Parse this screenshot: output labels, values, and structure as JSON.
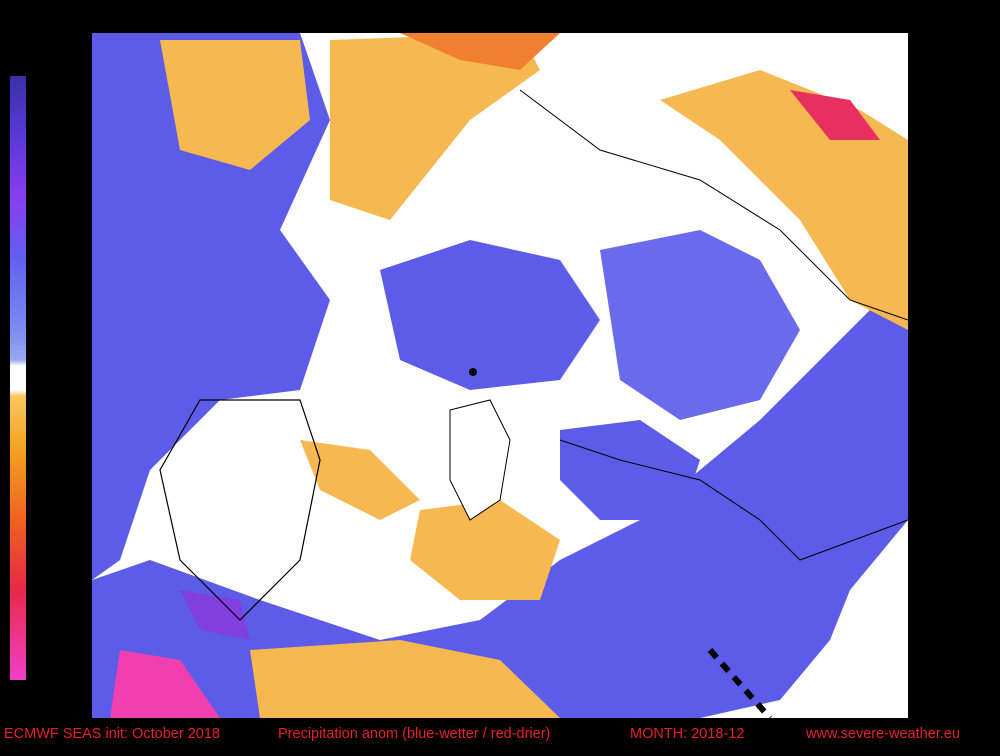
{
  "footer": {
    "model": "ECMWF SEAS init: October 2018",
    "product": "Precipitation anom (blue-wetter / red-drier)",
    "month": "MONTH: 2018-12",
    "site": "www.severe-weather.eu"
  }
}
